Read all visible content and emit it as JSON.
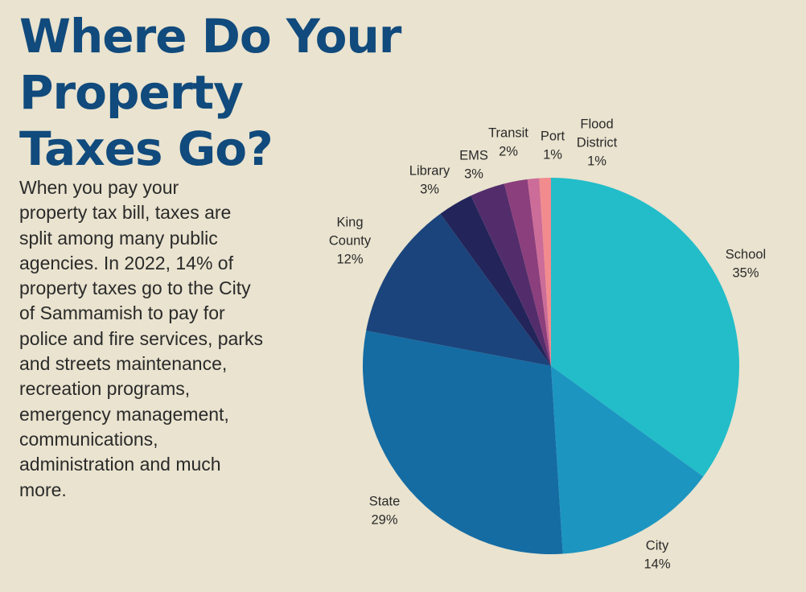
{
  "title_lines": [
    "Where Do Your Property",
    "Taxes Go?"
  ],
  "body_lines": [
    "When you pay your",
    "property tax bill, taxes are",
    "split among many public",
    "agencies. In 2022, 14% of",
    "property taxes go to the City",
    "of Sammamish to pay for",
    "police and fire services, parks",
    "and streets maintenance,",
    "recreation programs,",
    "emergency management,",
    "communications,",
    "administration and much",
    "more."
  ],
  "chart_data": {
    "type": "pie",
    "title": "",
    "slices": [
      {
        "label": "School",
        "value": 35,
        "display": "35%",
        "color": "#22bdc9"
      },
      {
        "label": "City",
        "value": 14,
        "display": "14%",
        "color": "#1c95c1"
      },
      {
        "label": "State",
        "value": 29,
        "display": "29%",
        "color": "#146ca3"
      },
      {
        "label": "King County",
        "value": 12,
        "display": "12%",
        "color": "#1b447c"
      },
      {
        "label": "Library",
        "value": 3,
        "display": "3%",
        "color": "#22245a"
      },
      {
        "label": "EMS",
        "value": 3,
        "display": "3%",
        "color": "#532d6b"
      },
      {
        "label": "Transit",
        "value": 2,
        "display": "2%",
        "color": "#8b3f7c"
      },
      {
        "label": "Port",
        "value": 1,
        "display": "1%",
        "color": "#cc6c98"
      },
      {
        "label": "Flood District",
        "value": 1,
        "display": "1%",
        "color": "#f28b8e"
      }
    ]
  }
}
